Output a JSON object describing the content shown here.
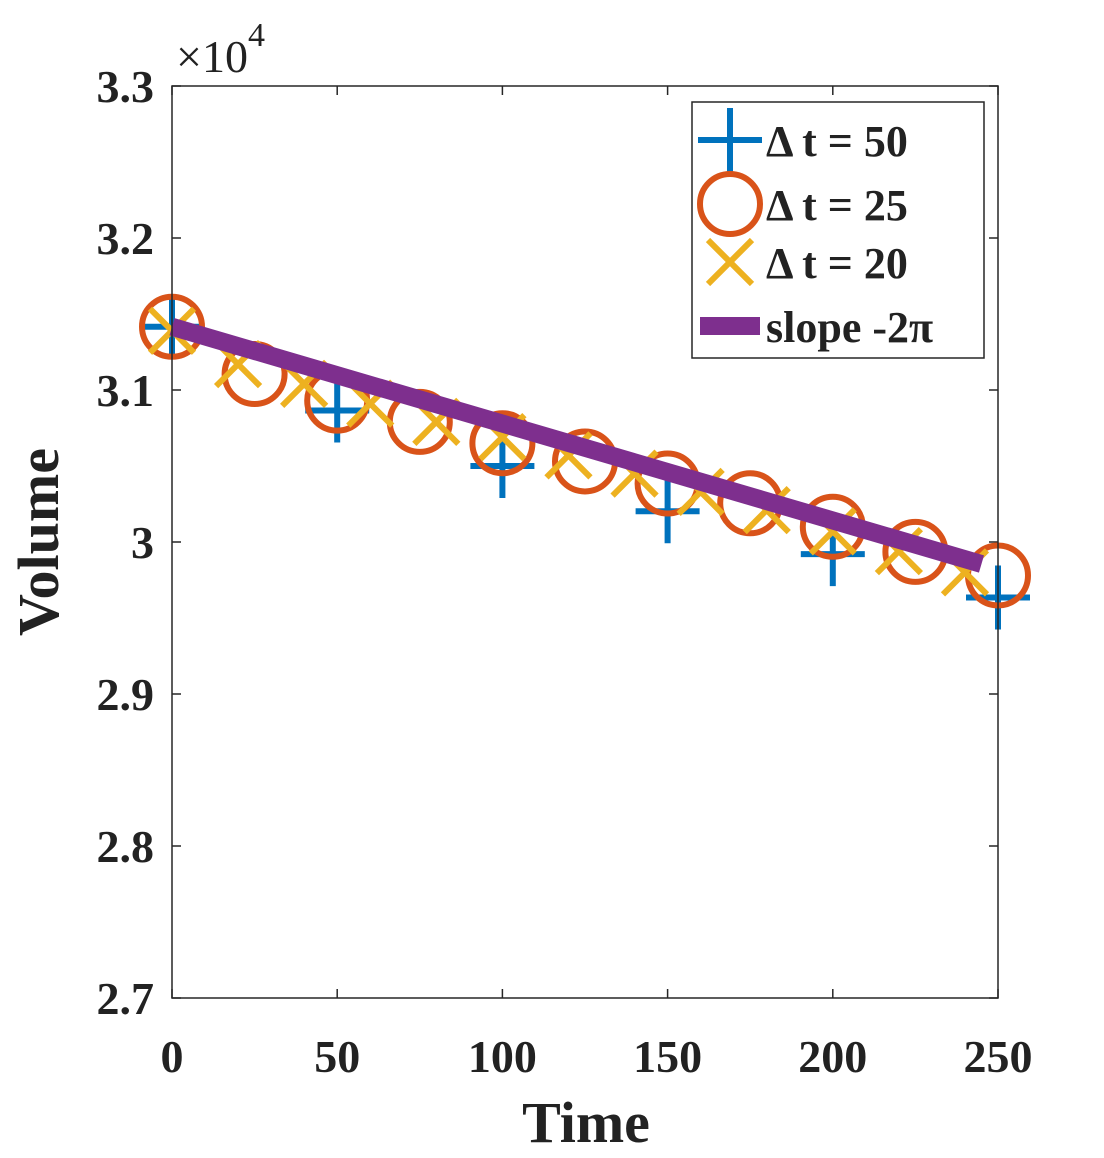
{
  "chart_data": {
    "type": "line",
    "title": "",
    "xlabel": "Time",
    "ylabel": "Volume",
    "xlim": [
      0,
      250
    ],
    "ylim": [
      2.7,
      3.3
    ],
    "y_scale_label": {
      "base": "×10",
      "exponent": "4"
    },
    "xticks": [
      0,
      50,
      100,
      150,
      200,
      250
    ],
    "xtick_labels": [
      "0",
      "50",
      "100",
      "150",
      "200",
      "250"
    ],
    "yticks": [
      2.7,
      2.8,
      2.9,
      3.0,
      3.1,
      3.2,
      3.3
    ],
    "ytick_labels": [
      "2.7",
      "2.8",
      "2.9",
      "3",
      "3.1",
      "3.2",
      "3.3"
    ],
    "legend_position": "top-right",
    "series": [
      {
        "name": "Δ t = 50",
        "marker": "plus",
        "color": "#0072BD",
        "x": [
          0,
          50,
          100,
          150,
          200,
          250
        ],
        "y": [
          3.1416,
          3.0865,
          3.05,
          3.0202,
          2.992,
          2.9635
        ]
      },
      {
        "name": "Δ t = 25",
        "marker": "circle",
        "color": "#D95319",
        "x": [
          0,
          25,
          50,
          75,
          100,
          125,
          150,
          175,
          200,
          225,
          250
        ],
        "y": [
          3.1416,
          3.1105,
          3.093,
          3.079,
          3.065,
          3.053,
          3.0385,
          3.0255,
          3.01,
          2.9935,
          2.978
        ]
      },
      {
        "name": "Δ t = 20",
        "marker": "x",
        "color": "#EDB120",
        "x": [
          0,
          20,
          40,
          60,
          80,
          100,
          120,
          140,
          160,
          180,
          200,
          220,
          240
        ],
        "y": [
          3.139,
          3.117,
          3.104,
          3.091,
          3.079,
          3.069,
          3.057,
          3.045,
          3.033,
          3.021,
          3.007,
          2.994,
          2.98
        ]
      },
      {
        "name": "slope -2π",
        "marker": "line",
        "color": "#7E2F8E",
        "x": [
          0,
          245
        ],
        "y": [
          3.1416,
          2.9855
        ]
      }
    ]
  }
}
